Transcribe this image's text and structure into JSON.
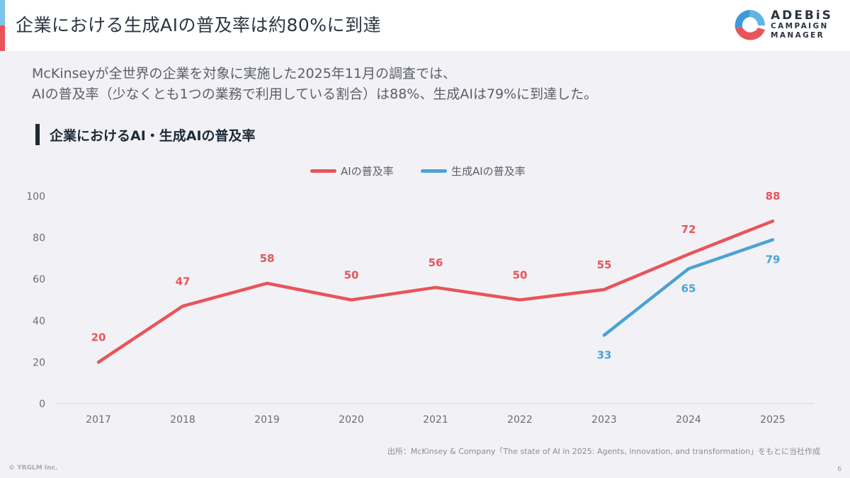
{
  "header": {
    "title": "企業における生成AIの普及率は約80%に到達",
    "logo": {
      "line1": "ADEBiS",
      "line2": "CAMPAIGN",
      "line3": "MANAGER"
    },
    "accent_colors": [
      "#7cc4e8",
      "#e8545a"
    ]
  },
  "lead": {
    "line1": "McKinseyが全世界の企業を対象に実施した2025年11月の調査では、",
    "line2": "AIの普及率（少なくとも1つの業務で利用している割合）は88%、生成AIは79%に到達した。"
  },
  "section": {
    "label": "企業におけるAI・生成AIの普及率"
  },
  "chart_data": {
    "type": "line",
    "title": "企業におけるAI・生成AIの普及率",
    "xlabel": "",
    "ylabel": "",
    "categories": [
      "2017",
      "2018",
      "2019",
      "2020",
      "2021",
      "2022",
      "2023",
      "2024",
      "2025"
    ],
    "ylim": [
      0,
      100
    ],
    "yticks": [
      0,
      20,
      40,
      60,
      80,
      100
    ],
    "grid": false,
    "legend_position": "top-center",
    "series": [
      {
        "name": "AIの普及率",
        "color": "#e8545a",
        "values": [
          20,
          47,
          58,
          50,
          56,
          50,
          55,
          72,
          88
        ],
        "label_position": "above"
      },
      {
        "name": "生成AIの普及率",
        "color": "#4aa3d6",
        "values": [
          null,
          null,
          null,
          null,
          null,
          null,
          33,
          65,
          79
        ],
        "label_position": "below"
      }
    ]
  },
  "footer": {
    "source": "出所：McKinsey & Company「The state of AI in 2025: Agents, innovation, and transformation」をもとに当社作成",
    "copyright": "© YRGLM Inc.",
    "page_number": "6"
  }
}
